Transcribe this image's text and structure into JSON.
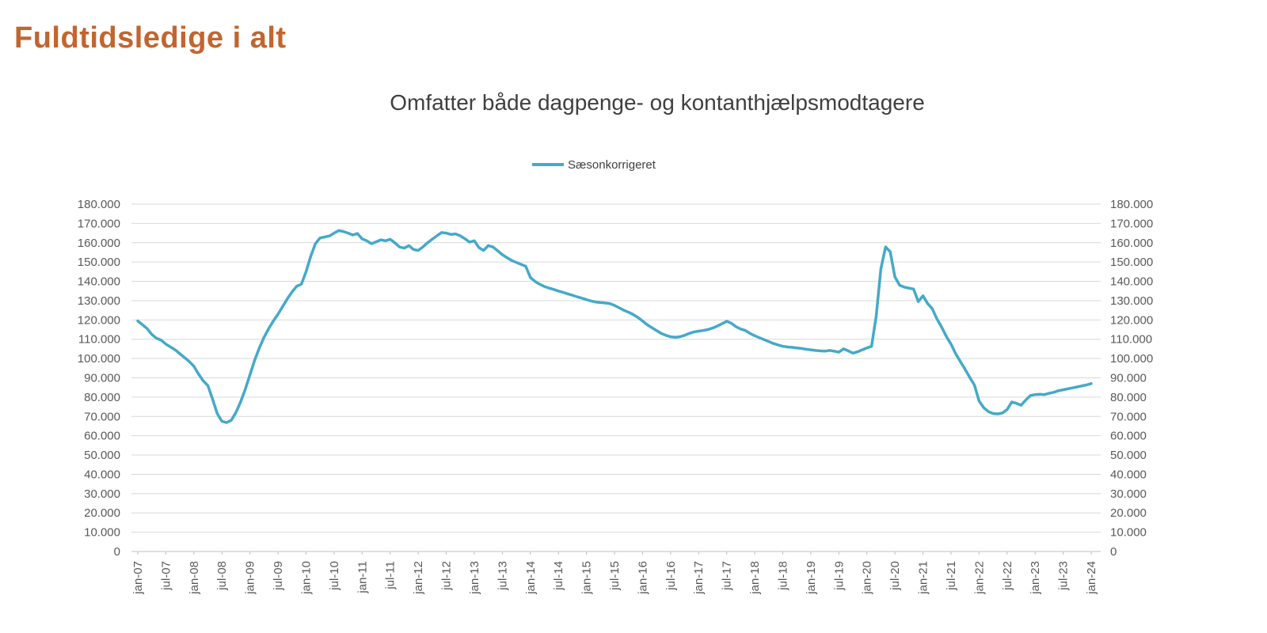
{
  "page": {
    "background": "#ffffff"
  },
  "header": {
    "title": "Fuldtidsledige i alt",
    "title_color": "#c2652f"
  },
  "chart": {
    "subtitle": "Omfatter både dagpenge- og kontanthjælpsmodtagere",
    "legend": {
      "label": "Sæsonkorrigeret",
      "line_color": "#45a9c9"
    },
    "colors": {
      "gridline": "#d9d9d9",
      "axis_line": "#bfbfbf",
      "tick_label": "#595959",
      "series_line": "#45a9c9"
    },
    "y_axis": {
      "min": 0,
      "max": 180000,
      "step": 10000,
      "tick_labels": [
        "0",
        "10.000",
        "20.000",
        "30.000",
        "40.000",
        "50.000",
        "60.000",
        "70.000",
        "80.000",
        "90.000",
        "100.000",
        "110.000",
        "120.000",
        "130.000",
        "140.000",
        "150.000",
        "160.000",
        "170.000",
        "180.000"
      ],
      "shown_on": "both-sides"
    },
    "x_axis": {
      "tick_labels": [
        "jan-07",
        "jul-07",
        "jan-08",
        "jul-08",
        "jan-09",
        "jul-09",
        "jan-10",
        "jul-10",
        "jan-11",
        "jul-11",
        "jan-12",
        "jul-12",
        "jan-13",
        "jul-13",
        "jan-14",
        "jul-14",
        "jan-15",
        "jul-15",
        "jan-16",
        "jul-16",
        "jan-17",
        "jul-17",
        "jan-18",
        "jul-18",
        "jan-19",
        "jul-19",
        "jan-20",
        "jul-20",
        "jan-21",
        "jul-21",
        "jan-22",
        "jul-22",
        "jan-23",
        "jul-23",
        "jan-24"
      ],
      "label_rotation_degrees": -90
    }
  },
  "chart_data": {
    "type": "line",
    "title": "Omfatter både dagpenge- og kontanthjælpsmodtagere",
    "xlabel": "",
    "ylabel": "",
    "ylim": [
      0,
      180000
    ],
    "grid": "horizontal",
    "legend_position": "top-center",
    "x_tick_labels": [
      "jan-07",
      "jul-07",
      "jan-08",
      "jul-08",
      "jan-09",
      "jul-09",
      "jan-10",
      "jul-10",
      "jan-11",
      "jul-11",
      "jan-12",
      "jul-12",
      "jan-13",
      "jul-13",
      "jan-14",
      "jul-14",
      "jan-15",
      "jul-15",
      "jan-16",
      "jul-16",
      "jan-17",
      "jul-17",
      "jan-18",
      "jul-18",
      "jan-19",
      "jul-19",
      "jan-20",
      "jul-20",
      "jan-21",
      "jul-21",
      "jan-22",
      "jul-22",
      "jan-23",
      "jul-23",
      "jan-24"
    ],
    "series": [
      {
        "name": "Sæsonkorrigeret",
        "color": "#45a9c9",
        "frequency": "monthly",
        "start_month": "jan-07",
        "end_month": "jan-24",
        "values": [
          119500,
          117500,
          115500,
          112500,
          110500,
          109500,
          107500,
          106000,
          104500,
          102500,
          100500,
          98500,
          96000,
          92000,
          88500,
          86000,
          79000,
          71500,
          67500,
          66800,
          68000,
          72000,
          77500,
          84000,
          91500,
          99000,
          105500,
          111000,
          115500,
          119500,
          123000,
          127000,
          131000,
          134500,
          137500,
          138500,
          145000,
          153000,
          159500,
          162500,
          163000,
          163500,
          165000,
          166300,
          165800,
          165000,
          164000,
          164800,
          162000,
          161000,
          159500,
          160500,
          161500,
          161000,
          161800,
          160000,
          157800,
          157200,
          158500,
          156500,
          156000,
          157800,
          160000,
          161800,
          163600,
          165300,
          165000,
          164300,
          164600,
          163600,
          162100,
          160300,
          161000,
          157500,
          156000,
          158500,
          157800,
          155800,
          153800,
          152300,
          150800,
          149800,
          148800,
          147800,
          142000,
          140000,
          138500,
          137300,
          136500,
          135800,
          135000,
          134300,
          133500,
          132800,
          132000,
          131300,
          130500,
          129800,
          129300,
          129000,
          128800,
          128500,
          127500,
          126300,
          125000,
          124000,
          122800,
          121300,
          119500,
          117500,
          116000,
          114500,
          113000,
          112000,
          111300,
          111000,
          111300,
          112000,
          113000,
          113800,
          114200,
          114500,
          115000,
          115800,
          116800,
          118000,
          119300,
          118300,
          116500,
          115300,
          114500,
          113000,
          111800,
          110800,
          109800,
          108800,
          107800,
          107000,
          106300,
          106000,
          105800,
          105500,
          105200,
          104800,
          104500,
          104200,
          104000,
          103800,
          104200,
          103800,
          103300,
          105000,
          104000,
          102800,
          103500,
          104500,
          105500,
          106300,
          122000,
          146500,
          157800,
          155300,
          142300,
          138000,
          137000,
          136500,
          136000,
          129500,
          132500,
          128500,
          125800,
          120500,
          116300,
          111500,
          107500,
          102500,
          98500,
          94500,
          90300,
          86300,
          78000,
          74500,
          72500,
          71500,
          71300,
          71800,
          73500,
          77500,
          76800,
          75800,
          78500,
          80800,
          81300,
          81500,
          81300,
          82000,
          82500,
          83300,
          83800,
          84300,
          84800,
          85300,
          85800,
          86300,
          87000
        ]
      }
    ]
  }
}
